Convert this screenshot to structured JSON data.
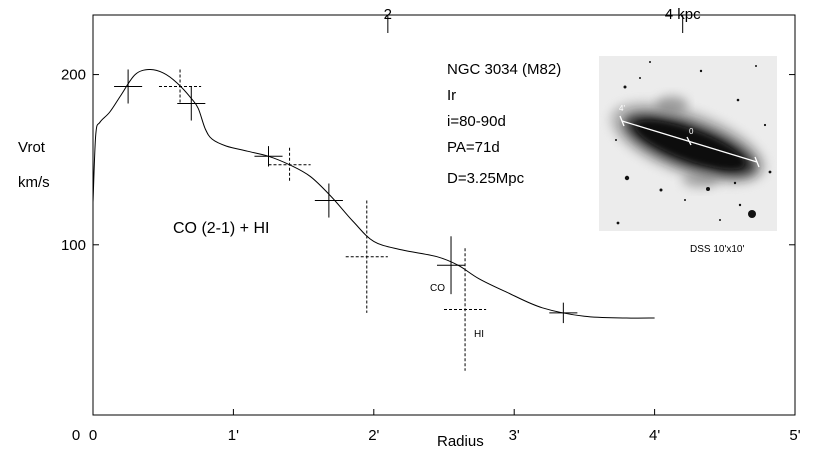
{
  "chart_data": {
    "type": "scatter",
    "xlabel": "Radius",
    "ylabel_line1": "Vrot",
    "ylabel_line2": "km/s",
    "x_range": [
      0,
      5
    ],
    "y_range": [
      0,
      235
    ],
    "x_ticks": [
      {
        "value": 0,
        "label": "0"
      },
      {
        "value": 1,
        "label": "1'"
      },
      {
        "value": 2,
        "label": "2'"
      },
      {
        "value": 3,
        "label": "3'"
      },
      {
        "value": 4,
        "label": "4'"
      },
      {
        "value": 5,
        "label": "5'"
      }
    ],
    "y_ticks": [
      {
        "value": 100,
        "label": "100"
      },
      {
        "value": 200,
        "label": "200"
      }
    ],
    "top_ticks": [
      {
        "x": 2.1,
        "label": "2"
      },
      {
        "x": 4.2,
        "label": "4 kpc"
      }
    ],
    "rotation_curve": [
      [
        0.0,
        125
      ],
      [
        0.02,
        165
      ],
      [
        0.05,
        172
      ],
      [
        0.12,
        178
      ],
      [
        0.2,
        188
      ],
      [
        0.3,
        200
      ],
      [
        0.4,
        203
      ],
      [
        0.5,
        201
      ],
      [
        0.6,
        195
      ],
      [
        0.7,
        186
      ],
      [
        0.75,
        180
      ],
      [
        0.8,
        168
      ],
      [
        0.85,
        162
      ],
      [
        0.95,
        158
      ],
      [
        1.1,
        155
      ],
      [
        1.25,
        152
      ],
      [
        1.4,
        147
      ],
      [
        1.55,
        140
      ],
      [
        1.7,
        128
      ],
      [
        1.85,
        114
      ],
      [
        2.0,
        102
      ],
      [
        2.2,
        97
      ],
      [
        2.45,
        93
      ],
      [
        2.6,
        88
      ],
      [
        2.75,
        80
      ],
      [
        2.95,
        72
      ],
      [
        3.2,
        63
      ],
      [
        3.5,
        58
      ],
      [
        3.8,
        57
      ],
      [
        4.0,
        57
      ]
    ],
    "series": [
      {
        "name": "CO",
        "style": "solid",
        "points": [
          {
            "x": 0.25,
            "y": 193,
            "xerr": 0.1,
            "yerr": 10
          },
          {
            "x": 0.7,
            "y": 183,
            "xerr": 0.1,
            "yerr": 10
          },
          {
            "x": 1.25,
            "y": 152,
            "xerr": 0.1,
            "yerr": 6
          },
          {
            "x": 1.68,
            "y": 126,
            "xerr": 0.1,
            "yerr": 10
          },
          {
            "x": 2.55,
            "y": 88,
            "xerr": 0.1,
            "yerr": 17
          },
          {
            "x": 3.35,
            "y": 60,
            "xerr": 0.1,
            "yerr": 6
          }
        ]
      },
      {
        "name": "HI",
        "style": "dashed",
        "points": [
          {
            "x": 0.62,
            "y": 193,
            "xerr": 0.15,
            "yerr": 10
          },
          {
            "x": 1.4,
            "y": 147,
            "xerr": 0.15,
            "yerr": 10
          },
          {
            "x": 1.95,
            "y": 93,
            "xerr": 0.15,
            "yerr": 33
          },
          {
            "x": 2.65,
            "y": 62,
            "xerr": 0.15,
            "yerr": 36
          }
        ]
      }
    ],
    "annotations": {
      "series_label": "CO (2-1) + HI",
      "co_label": "CO",
      "hi_label": "HI"
    },
    "info": [
      "NGC 3034 (M82)",
      "Ir",
      "i=80-90d",
      "PA=71d",
      "D=3.25Mpc"
    ],
    "image": {
      "caption": "DSS 10'x10'",
      "scale_label_left": "4'",
      "scale_label_center": "0"
    },
    "grid": false
  }
}
